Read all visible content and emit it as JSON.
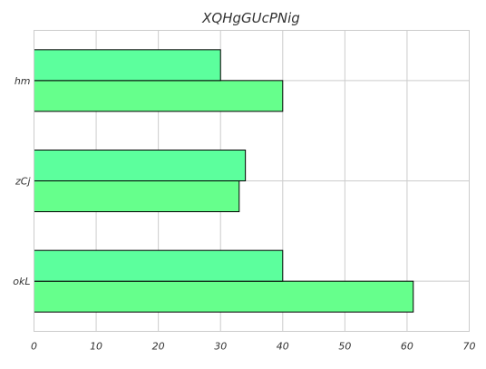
{
  "chart_data": {
    "type": "bar",
    "orientation": "horizontal",
    "title": "XQHgGUcPNig",
    "xlabel": "",
    "ylabel": "",
    "categories": [
      "okL",
      "zCj",
      "hm"
    ],
    "series": [
      {
        "values": [
          61,
          33,
          40
        ],
        "color": "#66ff8c"
      },
      {
        "values": [
          40,
          34,
          30
        ],
        "color": "#5cff9d"
      }
    ],
    "xlim": [
      0,
      70
    ],
    "xticks": [
      0,
      10,
      20,
      30,
      40,
      50,
      60,
      70
    ],
    "grid": true,
    "legend": "none"
  }
}
